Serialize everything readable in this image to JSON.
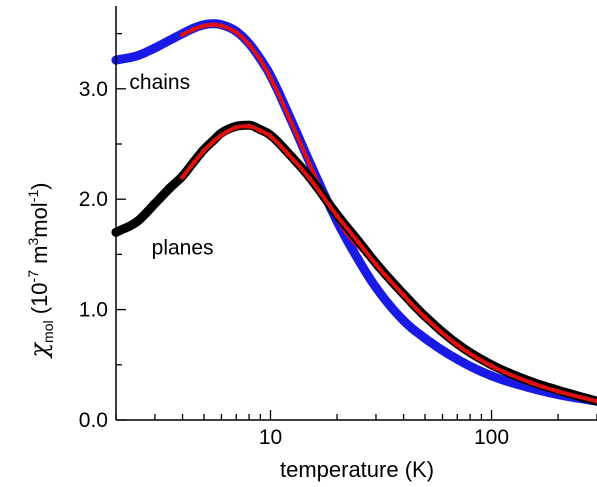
{
  "chart_data": {
    "type": "scatter",
    "title": "",
    "xlabel": "temperature (K)",
    "ylabel": {
      "symbol": "χ",
      "subscript": "mol",
      "unit_open": " (10",
      "exp1": "-7",
      "unit_mid": " m",
      "exp2": "3",
      "unit_mol": "mol",
      "exp3": "-1",
      "unit_close": ")"
    },
    "xscale": "log",
    "xlim": [
      2,
      300
    ],
    "ylim": [
      0,
      3.75
    ],
    "grid": false,
    "x_tick_labels": [
      {
        "value": 10,
        "label": "10"
      },
      {
        "value": 100,
        "label": "100"
      }
    ],
    "y_tick_labels": [
      {
        "value": 0,
        "label": "0.0"
      },
      {
        "value": 1,
        "label": "1.0"
      },
      {
        "value": 2,
        "label": "2.0"
      },
      {
        "value": 3,
        "label": "3.0"
      }
    ],
    "annotations": [
      {
        "text": "chains",
        "x": 2.3,
        "y": 3.0
      },
      {
        "text": "planes",
        "x": 2.9,
        "y": 1.5
      }
    ],
    "series": [
      {
        "role": "chains-data",
        "color": "#1a1ae6",
        "x": [
          2.0,
          2.5,
          3.0,
          3.5,
          4.0,
          4.5,
          5.0,
          5.5,
          6.0,
          7.0,
          8.0,
          9.0,
          10.0,
          12.0,
          15.0,
          20.0,
          25.0,
          30.0,
          40.0,
          50.0,
          70.0,
          100.0,
          150.0,
          200.0,
          300.0
        ],
        "y": [
          3.26,
          3.3,
          3.37,
          3.44,
          3.5,
          3.55,
          3.58,
          3.59,
          3.58,
          3.52,
          3.41,
          3.27,
          3.12,
          2.78,
          2.34,
          1.8,
          1.45,
          1.2,
          0.9,
          0.74,
          0.55,
          0.4,
          0.29,
          0.23,
          0.17
        ]
      },
      {
        "role": "chains-fit",
        "color": "#e01010",
        "x": [
          4.0,
          4.5,
          5.0,
          5.5,
          6.0,
          7.0,
          8.0,
          9.0,
          10.0,
          12.0,
          15.0,
          18.0,
          22.0,
          27.0,
          30.0
        ],
        "y": [
          3.49,
          3.54,
          3.57,
          3.58,
          3.57,
          3.51,
          3.4,
          3.26,
          3.1,
          2.76,
          2.32,
          1.98,
          1.7,
          1.5,
          1.4
        ]
      },
      {
        "role": "planes-data",
        "color": "#000000",
        "x": [
          2.0,
          2.5,
          3.0,
          3.5,
          4.0,
          4.5,
          5.0,
          5.5,
          6.0,
          7.0,
          8.0,
          9.0,
          10.0,
          12.0,
          15.0,
          20.0,
          25.0,
          30.0,
          40.0,
          50.0,
          70.0,
          100.0,
          150.0,
          200.0,
          300.0
        ],
        "y": [
          1.7,
          1.8,
          1.96,
          2.1,
          2.21,
          2.34,
          2.45,
          2.53,
          2.6,
          2.66,
          2.67,
          2.63,
          2.58,
          2.42,
          2.2,
          1.86,
          1.62,
          1.42,
          1.14,
          0.94,
          0.69,
          0.5,
          0.35,
          0.27,
          0.17
        ]
      },
      {
        "role": "planes-fit",
        "color": "#e01010",
        "x": [
          4.0,
          4.5,
          5.0,
          5.5,
          6.0,
          7.0,
          8.0,
          9.0,
          10.0,
          12.0,
          15.0,
          20.0,
          25.0,
          30.0,
          40.0,
          50.0,
          70.0,
          100.0,
          150.0,
          200.0,
          300.0
        ],
        "y": [
          2.2,
          2.33,
          2.44,
          2.52,
          2.58,
          2.65,
          2.66,
          2.62,
          2.57,
          2.41,
          2.19,
          1.85,
          1.61,
          1.41,
          1.13,
          0.93,
          0.68,
          0.49,
          0.34,
          0.26,
          0.17
        ]
      }
    ]
  }
}
